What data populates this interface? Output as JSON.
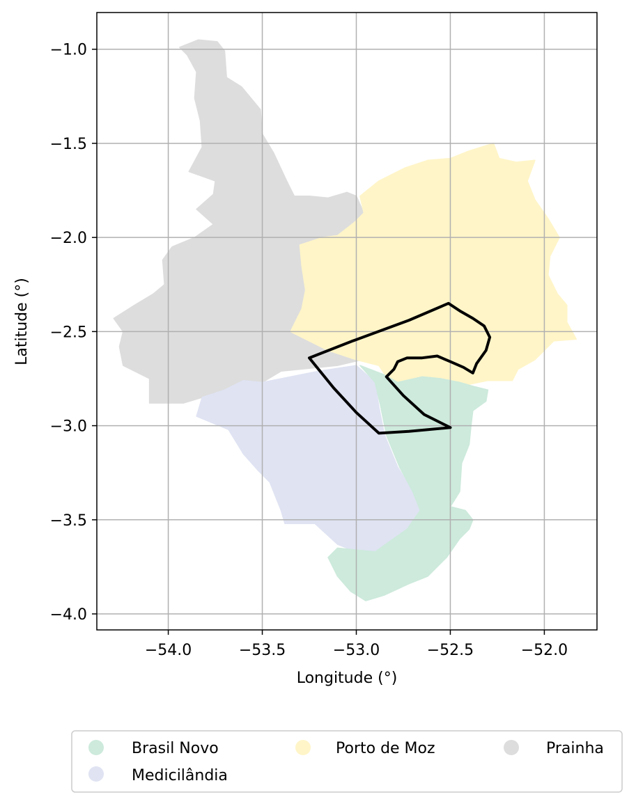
{
  "map": {
    "xlabel": "Longitude (°)",
    "ylabel": "Latitude (°)",
    "xlim": [
      -54.38,
      -51.72
    ],
    "ylim": [
      -4.085,
      -0.805
    ],
    "grid": true,
    "x_ticks": [
      {
        "value": -54.0,
        "label": "−54.0"
      },
      {
        "value": -53.5,
        "label": "−53.5"
      },
      {
        "value": -53.0,
        "label": "−53.0"
      },
      {
        "value": -52.5,
        "label": "−52.5"
      },
      {
        "value": -52.0,
        "label": "−52.0"
      }
    ],
    "y_ticks": [
      {
        "value": -1.0,
        "label": "−1.0"
      },
      {
        "value": -1.5,
        "label": "−1.5"
      },
      {
        "value": -2.0,
        "label": "−2.0"
      },
      {
        "value": -2.5,
        "label": "−2.5"
      },
      {
        "value": -3.0,
        "label": "−3.0"
      },
      {
        "value": -3.5,
        "label": "−3.5"
      },
      {
        "value": -4.0,
        "label": "−4.0"
      }
    ],
    "regions": [
      {
        "name": "Prainha",
        "color": "#dddddd",
        "polygons": [
          [
            [
              -53.94,
              -0.99
            ],
            [
              -53.84,
              -0.95
            ],
            [
              -53.74,
              -0.96
            ],
            [
              -53.7,
              -1.01
            ],
            [
              -53.69,
              -1.15
            ],
            [
              -53.61,
              -1.2
            ],
            [
              -53.51,
              -1.32
            ],
            [
              -53.5,
              -1.45
            ],
            [
              -53.44,
              -1.55
            ],
            [
              -53.37,
              -1.7
            ],
            [
              -53.33,
              -1.78
            ],
            [
              -53.25,
              -1.78
            ],
            [
              -53.15,
              -1.79
            ],
            [
              -53.05,
              -1.76
            ],
            [
              -53.0,
              -1.78
            ],
            [
              -52.96,
              -1.87
            ],
            [
              -53.01,
              -1.92
            ],
            [
              -53.1,
              -1.99
            ],
            [
              -53.18,
              -2.0
            ],
            [
              -53.3,
              -2.04
            ],
            [
              -53.29,
              -2.15
            ],
            [
              -53.27,
              -2.28
            ],
            [
              -53.29,
              -2.38
            ],
            [
              -53.35,
              -2.5
            ],
            [
              -53.2,
              -2.58
            ],
            [
              -52.97,
              -2.65
            ],
            [
              -53.1,
              -2.68
            ],
            [
              -53.4,
              -2.71
            ],
            [
              -53.5,
              -2.77
            ],
            [
              -53.6,
              -2.76
            ],
            [
              -53.7,
              -2.81
            ],
            [
              -53.82,
              -2.85
            ],
            [
              -53.92,
              -2.88
            ],
            [
              -54.1,
              -2.88
            ],
            [
              -54.1,
              -2.75
            ],
            [
              -54.24,
              -2.68
            ],
            [
              -54.26,
              -2.58
            ],
            [
              -54.24,
              -2.5
            ],
            [
              -54.29,
              -2.43
            ],
            [
              -54.18,
              -2.36
            ],
            [
              -54.08,
              -2.3
            ],
            [
              -54.02,
              -2.25
            ],
            [
              -54.03,
              -2.12
            ],
            [
              -53.98,
              -2.05
            ],
            [
              -53.86,
              -2.0
            ],
            [
              -53.76,
              -1.93
            ],
            [
              -53.85,
              -1.85
            ],
            [
              -53.76,
              -1.77
            ],
            [
              -53.75,
              -1.7
            ],
            [
              -53.89,
              -1.65
            ],
            [
              -53.82,
              -1.52
            ],
            [
              -53.83,
              -1.38
            ],
            [
              -53.86,
              -1.26
            ],
            [
              -53.85,
              -1.12
            ],
            [
              -53.9,
              -1.03
            ]
          ]
        ]
      },
      {
        "name": "Porto de Moz",
        "color": "#fff5c8",
        "polygons": [
          [
            [
              -52.98,
              -1.78
            ],
            [
              -52.88,
              -1.7
            ],
            [
              -52.74,
              -1.63
            ],
            [
              -52.62,
              -1.59
            ],
            [
              -52.5,
              -1.58
            ],
            [
              -52.4,
              -1.54
            ],
            [
              -52.27,
              -1.5
            ],
            [
              -52.24,
              -1.58
            ],
            [
              -52.15,
              -1.6
            ],
            [
              -52.05,
              -1.59
            ],
            [
              -52.09,
              -1.7
            ],
            [
              -52.05,
              -1.8
            ],
            [
              -51.98,
              -1.9
            ],
            [
              -51.92,
              -2.0
            ],
            [
              -51.97,
              -2.1
            ],
            [
              -51.98,
              -2.2
            ],
            [
              -51.93,
              -2.3
            ],
            [
              -51.88,
              -2.36
            ],
            [
              -51.88,
              -2.45
            ],
            [
              -51.83,
              -2.54
            ],
            [
              -51.95,
              -2.55
            ],
            [
              -52.05,
              -2.65
            ],
            [
              -52.14,
              -2.7
            ],
            [
              -52.17,
              -2.76
            ],
            [
              -52.3,
              -2.76
            ],
            [
              -52.4,
              -2.78
            ],
            [
              -52.54,
              -2.77
            ],
            [
              -52.68,
              -2.78
            ],
            [
              -52.82,
              -2.77
            ],
            [
              -52.88,
              -2.68
            ],
            [
              -53.0,
              -2.65
            ],
            [
              -53.15,
              -2.6
            ],
            [
              -53.35,
              -2.5
            ],
            [
              -53.29,
              -2.38
            ],
            [
              -53.27,
              -2.28
            ],
            [
              -53.29,
              -2.15
            ],
            [
              -53.3,
              -2.04
            ],
            [
              -53.18,
              -2.0
            ],
            [
              -53.1,
              -1.99
            ],
            [
              -53.01,
              -1.92
            ],
            [
              -52.96,
              -1.87
            ]
          ]
        ]
      },
      {
        "name": "Medicilândia",
        "color": "#dfe3f2",
        "polygons": [
          [
            [
              -53.35,
              -2.74
            ],
            [
              -53.2,
              -2.71
            ],
            [
              -53.0,
              -2.68
            ],
            [
              -52.9,
              -2.77
            ],
            [
              -52.88,
              -2.9
            ],
            [
              -52.85,
              -3.05
            ],
            [
              -52.78,
              -3.22
            ],
            [
              -52.7,
              -3.35
            ],
            [
              -52.66,
              -3.45
            ],
            [
              -52.73,
              -3.55
            ],
            [
              -52.83,
              -3.63
            ],
            [
              -52.9,
              -3.68
            ],
            [
              -53.0,
              -3.67
            ],
            [
              -53.1,
              -3.63
            ],
            [
              -53.22,
              -3.52
            ],
            [
              -53.38,
              -3.52
            ],
            [
              -53.4,
              -3.45
            ],
            [
              -53.46,
              -3.3
            ],
            [
              -53.52,
              -3.24
            ],
            [
              -53.6,
              -3.15
            ],
            [
              -53.68,
              -3.02
            ],
            [
              -53.85,
              -2.95
            ],
            [
              -53.82,
              -2.85
            ],
            [
              -53.7,
              -2.81
            ],
            [
              -53.6,
              -2.76
            ],
            [
              -53.5,
              -2.77
            ]
          ]
        ]
      },
      {
        "name": "Brasil Novo",
        "color": "#cdeadc",
        "polygons": [
          [
            [
              -52.98,
              -2.68
            ],
            [
              -52.85,
              -2.73
            ],
            [
              -52.78,
              -2.77
            ],
            [
              -52.65,
              -2.74
            ],
            [
              -52.55,
              -2.75
            ],
            [
              -52.45,
              -2.77
            ],
            [
              -52.38,
              -2.79
            ],
            [
              -52.3,
              -2.81
            ],
            [
              -52.31,
              -2.87
            ],
            [
              -52.38,
              -2.92
            ],
            [
              -52.39,
              -3.0
            ],
            [
              -52.4,
              -3.1
            ],
            [
              -52.44,
              -3.2
            ],
            [
              -52.45,
              -3.35
            ],
            [
              -52.5,
              -3.43
            ],
            [
              -52.42,
              -3.45
            ],
            [
              -52.38,
              -3.5
            ],
            [
              -52.4,
              -3.55
            ],
            [
              -52.45,
              -3.6
            ],
            [
              -52.52,
              -3.7
            ],
            [
              -52.62,
              -3.8
            ],
            [
              -52.72,
              -3.84
            ],
            [
              -52.85,
              -3.9
            ],
            [
              -52.95,
              -3.93
            ],
            [
              -53.03,
              -3.88
            ],
            [
              -53.1,
              -3.8
            ],
            [
              -53.15,
              -3.7
            ],
            [
              -53.1,
              -3.65
            ],
            [
              -53.0,
              -3.66
            ],
            [
              -52.9,
              -3.67
            ],
            [
              -52.83,
              -3.62
            ],
            [
              -52.73,
              -3.55
            ],
            [
              -52.66,
              -3.45
            ],
            [
              -52.7,
              -3.35
            ],
            [
              -52.77,
              -3.22
            ],
            [
              -52.84,
              -3.05
            ],
            [
              -52.87,
              -2.9
            ],
            [
              -52.9,
              -2.77
            ]
          ]
        ]
      }
    ],
    "outline": {
      "color": "#000000",
      "path": [
        [
          -52.51,
          -2.35
        ],
        [
          -52.45,
          -2.39
        ],
        [
          -52.38,
          -2.43
        ],
        [
          -52.32,
          -2.47
        ],
        [
          -52.29,
          -2.53
        ],
        [
          -52.31,
          -2.6
        ],
        [
          -52.36,
          -2.67
        ],
        [
          -52.38,
          -2.72
        ],
        [
          -52.43,
          -2.69
        ],
        [
          -52.5,
          -2.66
        ],
        [
          -52.57,
          -2.63
        ],
        [
          -52.65,
          -2.64
        ],
        [
          -52.73,
          -2.64
        ],
        [
          -52.78,
          -2.66
        ],
        [
          -52.8,
          -2.7
        ],
        [
          -52.84,
          -2.74
        ],
        [
          -52.75,
          -2.84
        ],
        [
          -52.64,
          -2.94
        ],
        [
          -52.5,
          -3.01
        ],
        [
          -52.72,
          -3.03
        ],
        [
          -52.88,
          -3.04
        ],
        [
          -53.0,
          -2.93
        ],
        [
          -53.12,
          -2.8
        ],
        [
          -53.25,
          -2.64
        ],
        [
          -53.02,
          -2.55
        ],
        [
          -52.72,
          -2.44
        ]
      ]
    }
  },
  "legend": {
    "items": [
      {
        "label": "Brasil Novo",
        "color": "#cdeadc"
      },
      {
        "label": "Medicilândia",
        "color": "#dfe3f2"
      },
      {
        "label": "Porto de Moz",
        "color": "#fff5c8"
      },
      {
        "label": "Prainha",
        "color": "#dddddd"
      }
    ]
  }
}
